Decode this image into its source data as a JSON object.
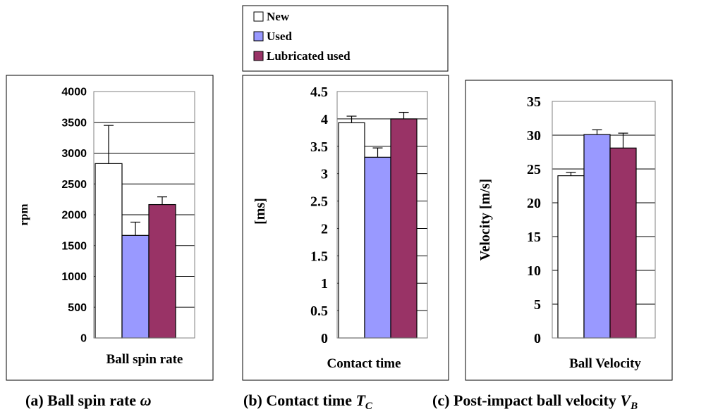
{
  "colors": {
    "new": "#ffffff",
    "used": "#9999ff",
    "lubricated": "#993366",
    "frame": "#000000",
    "plot_border": "#808080",
    "grid": "#000000"
  },
  "legend": {
    "items": [
      {
        "label": "New",
        "color": "#ffffff"
      },
      {
        "label": "Used",
        "color": "#9999ff"
      },
      {
        "label": "Lubricated used",
        "color": "#993366"
      }
    ]
  },
  "chart_data": [
    {
      "type": "bar",
      "caption": "(a) Ball spin rate ",
      "caption_symbol": "ω",
      "caption_subscript": "",
      "xlabel": "Ball spin rate",
      "ylabel": "rpm",
      "ylim": [
        0,
        4000
      ],
      "yticks": [
        "0",
        "500",
        "1000",
        "1500",
        "2000",
        "2500",
        "3000",
        "3500",
        "4000"
      ],
      "tick_step": 500,
      "grid": true,
      "series": [
        {
          "name": "New",
          "value": 2830,
          "error": 620
        },
        {
          "name": "Used",
          "value": 1665,
          "error": 215
        },
        {
          "name": "Lubricated used",
          "value": 2165,
          "error": 125
        }
      ]
    },
    {
      "type": "bar",
      "caption": "(b) Contact time ",
      "caption_symbol": "T",
      "caption_subscript": "C",
      "xlabel": "Contact time",
      "ylabel": "[ms]",
      "ylim": [
        0,
        4.5
      ],
      "yticks": [
        "0",
        "0.5",
        "1",
        "1.5",
        "2",
        "2.5",
        "3",
        "3.5",
        "4",
        "4.5"
      ],
      "tick_step": 0.5,
      "grid": true,
      "series": [
        {
          "name": "New",
          "value": 3.93,
          "error": 0.12
        },
        {
          "name": "Used",
          "value": 3.3,
          "error": 0.17
        },
        {
          "name": "Lubricated used",
          "value": 4.0,
          "error": 0.12
        }
      ]
    },
    {
      "type": "bar",
      "caption": "(c) Post-impact ball velocity ",
      "caption_symbol": "V",
      "caption_subscript": "B",
      "xlabel": "Ball Velocity",
      "ylabel": "Velocity [m/s]",
      "ylim": [
        0,
        35
      ],
      "yticks": [
        "0",
        "5",
        "10",
        "15",
        "20",
        "25",
        "30",
        "35"
      ],
      "tick_step": 5,
      "grid": true,
      "series": [
        {
          "name": "New",
          "value": 24.0,
          "error": 0.5
        },
        {
          "name": "Used",
          "value": 30.1,
          "error": 0.7
        },
        {
          "name": "Lubricated used",
          "value": 28.1,
          "error": 2.2
        }
      ]
    }
  ]
}
